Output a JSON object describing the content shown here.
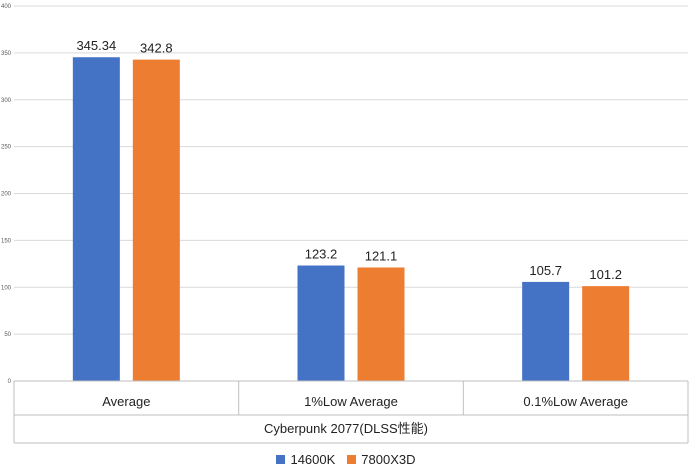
{
  "chart_data": {
    "type": "bar",
    "title": "",
    "xlabel": "Cyberpunk 2077(DLSS性能)",
    "ylabel": "",
    "categories": [
      "Average",
      "1%Low Average",
      "0.1%Low Average"
    ],
    "series": [
      {
        "name": "14600K",
        "values": [
          345.34,
          123.2,
          105.7
        ],
        "labels": [
          "345.34",
          "123.2",
          "105.7"
        ],
        "color": "#4472C4"
      },
      {
        "name": "7800X3D",
        "values": [
          342.8,
          121.1,
          101.2
        ],
        "labels": [
          "342.8",
          "121.1",
          "101.2"
        ],
        "color": "#ED7D31"
      }
    ],
    "ylim": [
      0,
      400
    ],
    "yticks": [
      "0",
      "50",
      "100",
      "150",
      "200",
      "250",
      "300",
      "350",
      "400"
    ],
    "grid": true,
    "legend": "bottom"
  }
}
